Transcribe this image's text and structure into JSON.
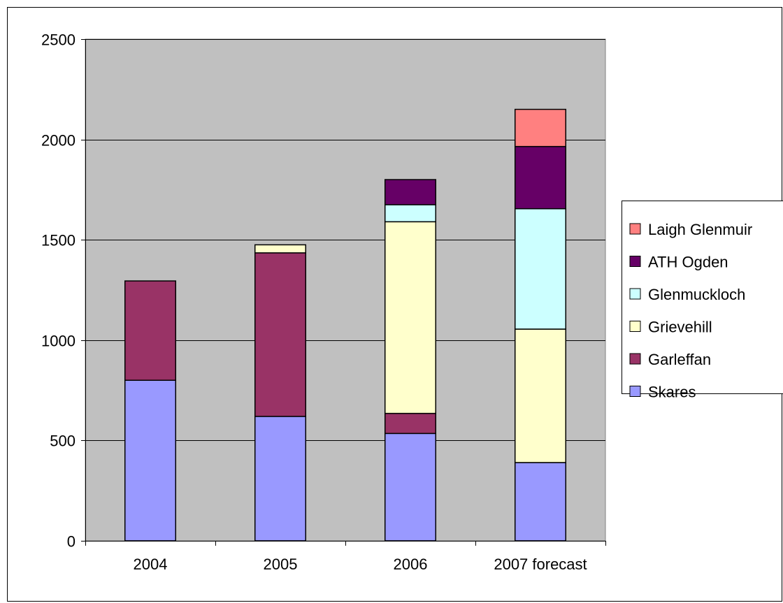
{
  "chart_data": {
    "type": "bar",
    "stacked": true,
    "categories": [
      "2004",
      "2005",
      "2006",
      "2007 forecast"
    ],
    "series": [
      {
        "name": "Skares",
        "color": "#9999ff",
        "values": [
          800,
          620,
          535,
          390
        ]
      },
      {
        "name": "Garleffan",
        "color": "#993366",
        "values": [
          495,
          815,
          100,
          0
        ]
      },
      {
        "name": "Grievehill",
        "color": "#ffffcc",
        "values": [
          0,
          40,
          955,
          665
        ]
      },
      {
        "name": "Glenmuckloch",
        "color": "#ccffff",
        "values": [
          0,
          0,
          85,
          600
        ]
      },
      {
        "name": "ATH Ogden",
        "color": "#660066",
        "values": [
          0,
          0,
          125,
          310
        ]
      },
      {
        "name": "Laigh Glenmuir",
        "color": "#ff8080",
        "values": [
          0,
          0,
          0,
          185
        ]
      }
    ],
    "ylim": [
      0,
      2500
    ],
    "yticks": [
      0,
      500,
      1000,
      1500,
      2000,
      2500
    ],
    "grid": true,
    "plot_background": "#c0c0c0",
    "legend_position": "right",
    "legend_order": [
      "Laigh Glenmuir",
      "ATH Ogden",
      "Glenmuckloch",
      "Grievehill",
      "Garleffan",
      "Skares"
    ],
    "title": "",
    "xlabel": "",
    "ylabel": ""
  }
}
